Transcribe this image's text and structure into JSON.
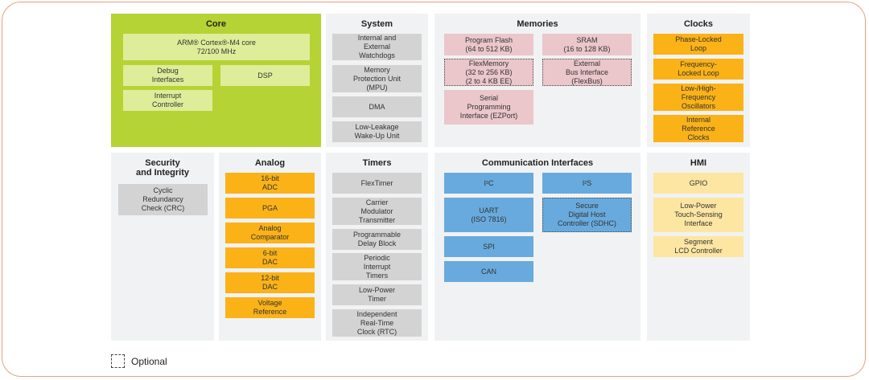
{
  "colors": {
    "core_panel": "#b5d334",
    "core_block": "#deed99",
    "gray_block": "#d3d3d3",
    "memory_block": "#ebc6cb",
    "orange_block": "#fbb217",
    "blue_block": "#68aadd",
    "hmi_block": "#fde6a2",
    "panel_bg": "#f1f2f3",
    "frame_border": "#e9a27c"
  },
  "panels": [
    {
      "id": "core",
      "title": "Core",
      "color": "core_block",
      "blocks": [
        {
          "label": "ARM® Cortex®-M4 core\n72/100 MHz"
        },
        {
          "label": "Debug\nInterfaces"
        },
        {
          "label": "DSP"
        },
        {
          "label": "Interrupt\nController"
        }
      ]
    },
    {
      "id": "system",
      "title": "System",
      "color": "gray_block",
      "blocks": [
        {
          "label": "Internal and\nExternal\nWatchdogs"
        },
        {
          "label": "Memory\nProtection Unit\n(MPU)"
        },
        {
          "label": "DMA"
        },
        {
          "label": "Low-Leakage\nWake-Up Unit"
        }
      ]
    },
    {
      "id": "memories",
      "title": "Memories",
      "color": "memory_block",
      "blocks": [
        {
          "label": "Program Flash\n(64 to 512 KB)"
        },
        {
          "label": "SRAM\n(16 to 128 KB)"
        },
        {
          "label": "FlexMemory\n(32 to 256 KB)\n(2 to 4 KB EE)",
          "optional": true
        },
        {
          "label": "External\nBus Interface\n(FlexBus)",
          "optional": true
        },
        {
          "label": "Serial\nProgramming\nInterface (EZPort)"
        }
      ]
    },
    {
      "id": "clocks",
      "title": "Clocks",
      "color": "orange_block",
      "blocks": [
        {
          "label": "Phase-Locked\nLoop"
        },
        {
          "label": "Frequency-\nLocked Loop"
        },
        {
          "label": "Low-/High-\nFrequency\nOscillators"
        },
        {
          "label": "Internal\nReference\nClocks"
        }
      ]
    },
    {
      "id": "security",
      "title": "Security\nand Integrity",
      "color": "gray_block",
      "blocks": [
        {
          "label": "Cyclic\nRedundancy\nCheck (CRC)"
        }
      ]
    },
    {
      "id": "analog",
      "title": "Analog",
      "color": "orange_block",
      "blocks": [
        {
          "label": "16-bit\nADC"
        },
        {
          "label": "PGA"
        },
        {
          "label": "Analog\nComparator"
        },
        {
          "label": "6-bit\nDAC"
        },
        {
          "label": "12-bit\nDAC"
        },
        {
          "label": "Voltage\nReference"
        }
      ]
    },
    {
      "id": "timers",
      "title": "Timers",
      "color": "gray_block",
      "blocks": [
        {
          "label": "FlexTimer"
        },
        {
          "label": "Carrier\nModulator\nTransmitter"
        },
        {
          "label": "Programmable\nDelay Block"
        },
        {
          "label": "Periodic\nInterrupt\nTimers"
        },
        {
          "label": "Low-Power\nTimer"
        },
        {
          "label": "Independent\nReal-Time\nClock (RTC)"
        }
      ]
    },
    {
      "id": "comm",
      "title": "Communication Interfaces",
      "color": "blue_block",
      "blocks": [
        {
          "label": "I²C"
        },
        {
          "label": "I²S"
        },
        {
          "label": "UART\n(ISO 7816)"
        },
        {
          "label": "Secure\nDigital Host\nController (SDHC)",
          "optional": true
        },
        {
          "label": "SPI"
        },
        {
          "label": "CAN"
        }
      ]
    },
    {
      "id": "hmi",
      "title": "HMI",
      "color": "hmi_block",
      "blocks": [
        {
          "label": "GPIO"
        },
        {
          "label": "Low-Power\nTouch-Sensing\nInterface"
        },
        {
          "label": "Segment\nLCD Controller"
        }
      ]
    }
  ],
  "legend": {
    "label": "Optional"
  }
}
